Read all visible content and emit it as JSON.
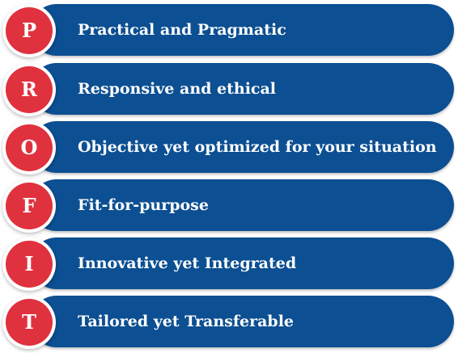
{
  "colors": {
    "bar": "#0c4f92",
    "badge": "#e0313f"
  },
  "items": [
    {
      "letter": "P",
      "text": "Practical and Pragmatic"
    },
    {
      "letter": "R",
      "text": "Responsive and ethical"
    },
    {
      "letter": "O",
      "text": "Objective yet optimized for your situation"
    },
    {
      "letter": "F",
      "text": "Fit-for-purpose"
    },
    {
      "letter": "I",
      "text": "Innovative yet Integrated"
    },
    {
      "letter": "T",
      "text": "Tailored yet Transferable"
    }
  ]
}
